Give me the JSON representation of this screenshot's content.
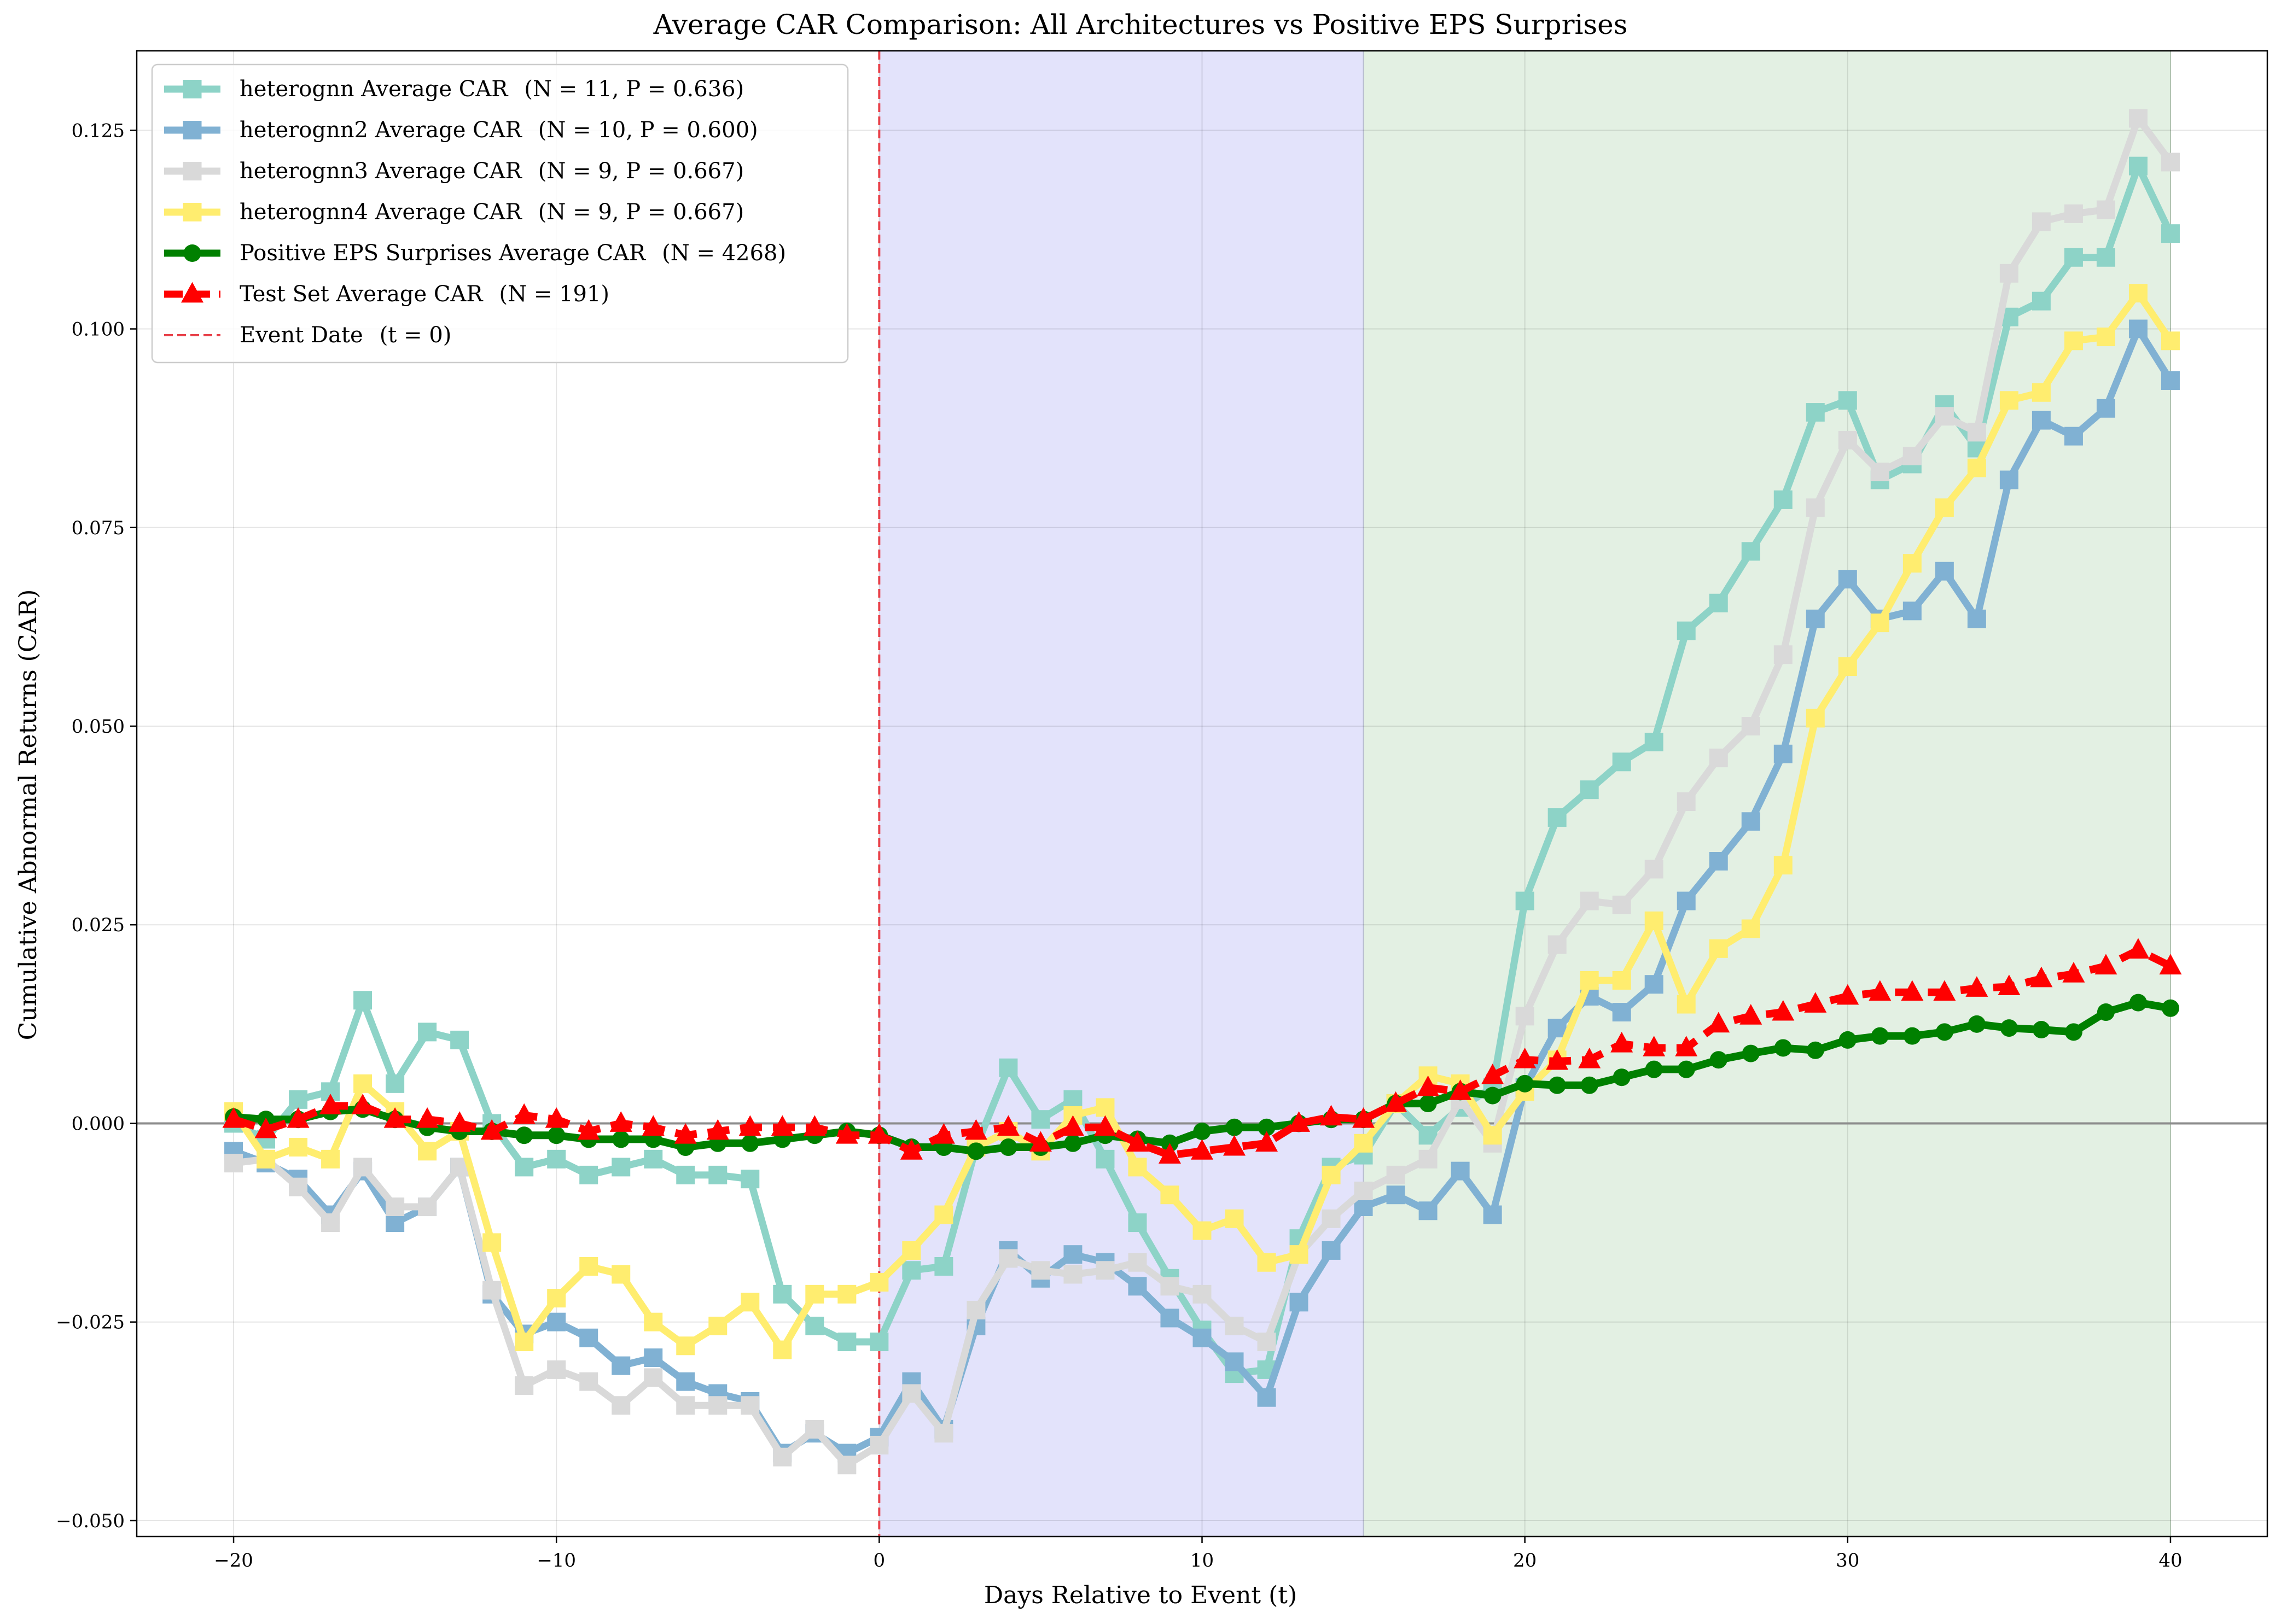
{
  "chart_data": {
    "type": "line",
    "title": "Average CAR Comparison: All Architectures vs Positive EPS Surprises",
    "xlabel": "Days Relative to Event (t)",
    "ylabel": "Cumulative Abnormal Returns (CAR)",
    "xlim": [
      -23,
      43
    ],
    "ylim": [
      -0.052,
      0.135
    ],
    "xticks": [
      -20,
      -10,
      0,
      10,
      20,
      30,
      40
    ],
    "yticks": [
      -0.05,
      -0.025,
      0.0,
      0.025,
      0.05,
      0.075,
      0.1,
      0.125
    ],
    "xtick_labels": [
      "−20",
      "−10",
      "0",
      "10",
      "20",
      "30",
      "40"
    ],
    "ytick_labels": [
      "−0.050",
      "−0.025",
      "0.000",
      "0.025",
      "0.050",
      "0.075",
      "0.100",
      "0.125"
    ],
    "grid": true,
    "legend_position": "top-left",
    "shaded_regions": [
      {
        "x": [
          0,
          15
        ],
        "color": "#e3e3fb"
      },
      {
        "x": [
          15,
          40
        ],
        "color": "#e3f0e3"
      }
    ],
    "reference_lines": [
      {
        "type": "vertical",
        "x": 0,
        "color": "#e8414a",
        "style": "dashed"
      },
      {
        "type": "horizontal",
        "y": 0,
        "color": "#8c8c8c",
        "style": "solid"
      }
    ],
    "x": [
      -20,
      -19,
      -18,
      -17,
      -16,
      -15,
      -14,
      -13,
      -12,
      -11,
      -10,
      -9,
      -8,
      -7,
      -6,
      -5,
      -4,
      -3,
      -2,
      -1,
      0,
      1,
      2,
      3,
      4,
      5,
      6,
      7,
      8,
      9,
      10,
      11,
      12,
      13,
      14,
      15,
      16,
      17,
      18,
      19,
      20,
      21,
      22,
      23,
      24,
      25,
      26,
      27,
      28,
      29,
      30,
      31,
      32,
      33,
      34,
      35,
      36,
      37,
      38,
      39,
      40
    ],
    "series": [
      {
        "name": "heterognn Average CAR",
        "legend_stats": "(N = 11, P = 0.636)",
        "color": "#8dd3c7",
        "marker": "square",
        "style": "solid",
        "values": [
          0.0,
          -0.002,
          0.003,
          0.004,
          0.0155,
          0.005,
          0.0115,
          0.0105,
          0.0,
          -0.0055,
          -0.0045,
          -0.0065,
          -0.0055,
          -0.0045,
          -0.0065,
          -0.0065,
          -0.007,
          -0.0215,
          -0.0255,
          -0.0275,
          -0.0275,
          -0.0185,
          -0.018,
          -0.003,
          0.007,
          0.0005,
          0.003,
          -0.0045,
          -0.0125,
          -0.0195,
          -0.026,
          -0.0315,
          -0.031,
          -0.0145,
          -0.0055,
          -0.004,
          0.0025,
          -0.0015,
          0.002,
          0.0045,
          0.028,
          0.0385,
          0.042,
          0.0455,
          0.048,
          0.062,
          0.0655,
          0.072,
          0.0785,
          0.0895,
          0.091,
          0.081,
          0.083,
          0.0905,
          0.085,
          0.1015,
          0.1035,
          0.109,
          0.109,
          0.1205,
          0.112
        ]
      },
      {
        "name": "heterognn2 Average CAR",
        "legend_stats": "(N = 10, P = 0.600)",
        "color": "#80b1d3",
        "marker": "square",
        "style": "solid",
        "values": [
          -0.0035,
          -0.005,
          -0.007,
          -0.0115,
          -0.006,
          -0.0125,
          -0.0105,
          -0.0055,
          -0.0215,
          -0.0265,
          -0.025,
          -0.027,
          -0.0305,
          -0.0295,
          -0.0325,
          -0.034,
          -0.035,
          -0.0415,
          -0.039,
          -0.0415,
          -0.0395,
          -0.0325,
          -0.0385,
          -0.0255,
          -0.016,
          -0.0195,
          -0.0165,
          -0.0175,
          -0.0205,
          -0.0245,
          -0.027,
          -0.03,
          -0.0345,
          -0.0225,
          -0.016,
          -0.0105,
          -0.009,
          -0.011,
          -0.006,
          -0.0115,
          0.0045,
          0.012,
          0.016,
          0.014,
          0.0175,
          0.028,
          0.033,
          0.038,
          0.0465,
          0.0635,
          0.0685,
          0.0635,
          0.0645,
          0.0695,
          0.0635,
          0.081,
          0.0885,
          0.0865,
          0.09,
          0.1,
          0.0935
        ]
      },
      {
        "name": "heterognn3 Average CAR",
        "legend_stats": "(N = 9, P = 0.667)",
        "color": "#d9d9d9",
        "marker": "square",
        "style": "solid",
        "values": [
          -0.005,
          -0.0045,
          -0.008,
          -0.0125,
          -0.0055,
          -0.0105,
          -0.0105,
          -0.0055,
          -0.021,
          -0.033,
          -0.031,
          -0.0325,
          -0.0355,
          -0.032,
          -0.0355,
          -0.0355,
          -0.0355,
          -0.042,
          -0.0385,
          -0.043,
          -0.0405,
          -0.034,
          -0.039,
          -0.0235,
          -0.017,
          -0.0185,
          -0.019,
          -0.0185,
          -0.0175,
          -0.0205,
          -0.0215,
          -0.0255,
          -0.0275,
          -0.0165,
          -0.012,
          -0.0085,
          -0.0065,
          -0.0045,
          0.003,
          -0.0025,
          0.0135,
          0.0225,
          0.028,
          0.0275,
          0.032,
          0.0405,
          0.046,
          0.05,
          0.059,
          0.0775,
          0.086,
          0.082,
          0.084,
          0.089,
          0.087,
          0.107,
          0.1135,
          0.1145,
          0.115,
          0.1265,
          0.121
        ]
      },
      {
        "name": "heterognn4 Average CAR",
        "legend_stats": "(N = 9, P = 0.667)",
        "color": "#ffed6f",
        "marker": "square",
        "style": "solid",
        "values": [
          0.0015,
          -0.0045,
          -0.003,
          -0.0045,
          0.005,
          0.0015,
          -0.0035,
          -0.001,
          -0.015,
          -0.0275,
          -0.022,
          -0.018,
          -0.019,
          -0.025,
          -0.028,
          -0.0255,
          -0.0225,
          -0.0285,
          -0.0215,
          -0.0215,
          -0.02,
          -0.016,
          -0.0115,
          -0.003,
          -0.001,
          -0.0035,
          0.001,
          0.002,
          -0.0055,
          -0.009,
          -0.0135,
          -0.012,
          -0.0175,
          -0.0165,
          -0.0065,
          -0.0025,
          0.0025,
          0.006,
          0.005,
          -0.0015,
          0.004,
          0.008,
          0.018,
          0.018,
          0.0255,
          0.015,
          0.022,
          0.0245,
          0.0325,
          0.051,
          0.0575,
          0.063,
          0.0705,
          0.0775,
          0.0825,
          0.091,
          0.092,
          0.0985,
          0.099,
          0.1045,
          0.0985
        ]
      },
      {
        "name": "Positive EPS Surprises Average CAR",
        "legend_stats": "(N = 4268)",
        "color": "#008000",
        "marker": "circle",
        "style": "solid",
        "values": [
          0.0008,
          0.0005,
          0.0005,
          0.0015,
          0.0018,
          0.0005,
          -0.0005,
          -0.001,
          -0.001,
          -0.0015,
          -0.0015,
          -0.002,
          -0.002,
          -0.002,
          -0.003,
          -0.0025,
          -0.0025,
          -0.002,
          -0.0015,
          -0.001,
          -0.0015,
          -0.003,
          -0.003,
          -0.0035,
          -0.003,
          -0.003,
          -0.0025,
          -0.0015,
          -0.002,
          -0.0025,
          -0.001,
          -0.0005,
          -0.0005,
          0.0,
          0.0005,
          0.0005,
          0.0025,
          0.0025,
          0.004,
          0.0035,
          0.005,
          0.0048,
          0.0048,
          0.0058,
          0.0068,
          0.0068,
          0.008,
          0.0088,
          0.0095,
          0.0092,
          0.0105,
          0.011,
          0.011,
          0.0115,
          0.0125,
          0.012,
          0.0118,
          0.0115,
          0.014,
          0.0152,
          0.0145
        ]
      },
      {
        "name": "Test Set Average CAR",
        "legend_stats": "(N = 191)",
        "color": "#ff0000",
        "marker": "triangle",
        "style": "dashed",
        "values": [
          0.0005,
          -0.0008,
          0.0005,
          0.0022,
          0.0022,
          0.0005,
          0.0005,
          0.0,
          -0.001,
          0.001,
          0.0005,
          -0.001,
          0.0,
          -0.0005,
          -0.0015,
          -0.001,
          -0.0005,
          -0.0005,
          -0.0005,
          -0.0015,
          -0.0015,
          -0.0035,
          -0.0015,
          -0.001,
          -0.0005,
          -0.0025,
          -0.0005,
          -0.0005,
          -0.0025,
          -0.004,
          -0.0035,
          -0.003,
          -0.0025,
          0.0,
          0.0008,
          0.0005,
          0.0025,
          0.0045,
          0.004,
          0.006,
          0.008,
          0.0078,
          0.008,
          0.01,
          0.0095,
          0.0095,
          0.0125,
          0.0135,
          0.014,
          0.015,
          0.016,
          0.0165,
          0.0165,
          0.0165,
          0.017,
          0.0172,
          0.0182,
          0.0188,
          0.0198,
          0.0218,
          0.0198
        ]
      }
    ],
    "extra_legend_entries": [
      {
        "name": "Event Date",
        "legend_stats": "(t = 0)",
        "color": "#e8414a",
        "style": "dashed"
      }
    ]
  }
}
